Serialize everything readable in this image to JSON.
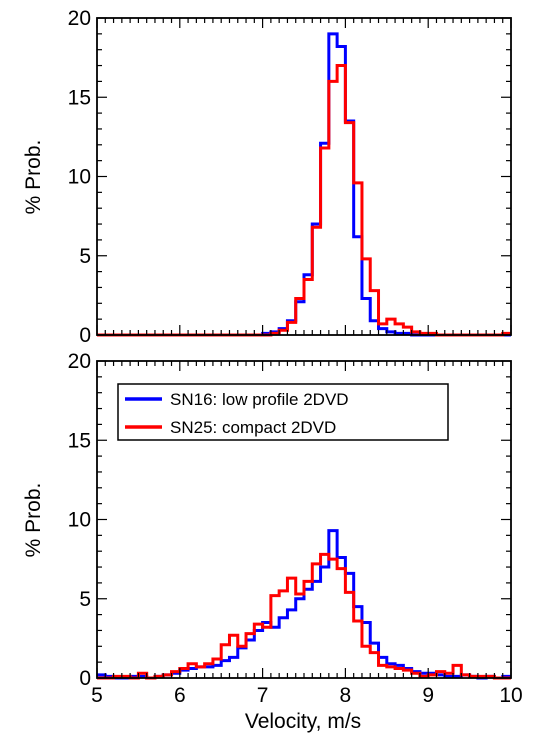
{
  "chart_data": [
    {
      "type": "step",
      "xlim": [
        5,
        10
      ],
      "ylim": [
        0,
        20
      ],
      "xlabel": "",
      "ylabel": "% Prob.",
      "yticks": [
        "0",
        "5",
        "10",
        "15",
        "20"
      ],
      "xticks": [],
      "bin_width": 0.1,
      "x": [
        5.0,
        5.1,
        5.2,
        5.3,
        5.4,
        5.5,
        5.6,
        5.7,
        5.8,
        5.9,
        6.0,
        6.1,
        6.2,
        6.3,
        6.4,
        6.5,
        6.6,
        6.7,
        6.8,
        6.9,
        7.0,
        7.1,
        7.2,
        7.3,
        7.4,
        7.5,
        7.6,
        7.7,
        7.8,
        7.9,
        8.0,
        8.1,
        8.2,
        8.3,
        8.4,
        8.5,
        8.6,
        8.7,
        8.8,
        8.9,
        9.0,
        9.1,
        9.2,
        9.3,
        9.4,
        9.5,
        9.6,
        9.7,
        9.8,
        9.9
      ],
      "series": [
        {
          "name": "SN16: low profile 2DVD",
          "color": "#0000ff",
          "values": [
            0,
            0,
            0,
            0,
            0,
            0,
            0,
            0,
            0,
            0,
            0,
            0,
            0,
            0,
            0,
            0,
            0,
            0,
            0,
            0,
            0.1,
            0.2,
            0.4,
            0.9,
            2.1,
            3.8,
            7.0,
            12.1,
            19.0,
            18.2,
            13.5,
            6.2,
            2.3,
            0.9,
            0.4,
            0.2,
            0.1,
            0.1,
            0,
            0,
            0,
            0,
            0,
            0,
            0,
            0,
            0,
            0,
            0,
            0
          ]
        },
        {
          "name": "SN25: compact 2DVD",
          "color": "#ff0000",
          "values": [
            0,
            0,
            0,
            0,
            0,
            0,
            0,
            0,
            0,
            0,
            0,
            0,
            0,
            0,
            0,
            0,
            0,
            0,
            0,
            0,
            0,
            0.1,
            0.3,
            0.8,
            2.3,
            3.5,
            6.8,
            11.8,
            16.0,
            17.0,
            13.4,
            9.6,
            4.8,
            2.8,
            0.7,
            1.0,
            0.7,
            0.5,
            0.2,
            0.1,
            0.1,
            0,
            0,
            0,
            0,
            0,
            0,
            0,
            0,
            0.1
          ]
        }
      ]
    },
    {
      "type": "step",
      "xlim": [
        5,
        10
      ],
      "ylim": [
        0,
        20
      ],
      "xlabel": "Velocity, m/s",
      "ylabel": "% Prob.",
      "yticks": [
        "0",
        "5",
        "10",
        "15",
        "20"
      ],
      "xticks": [
        "5",
        "6",
        "7",
        "8",
        "9",
        "10"
      ],
      "legend_position": "top-left",
      "bin_width": 0.1,
      "x": [
        5.0,
        5.1,
        5.2,
        5.3,
        5.4,
        5.5,
        5.6,
        5.7,
        5.8,
        5.9,
        6.0,
        6.1,
        6.2,
        6.3,
        6.4,
        6.5,
        6.6,
        6.7,
        6.8,
        6.9,
        7.0,
        7.1,
        7.2,
        7.3,
        7.4,
        7.5,
        7.6,
        7.7,
        7.8,
        7.9,
        8.0,
        8.1,
        8.2,
        8.3,
        8.4,
        8.5,
        8.6,
        8.7,
        8.8,
        8.9,
        9.0,
        9.1,
        9.2,
        9.3,
        9.4,
        9.5,
        9.6,
        9.7,
        9.8,
        9.9
      ],
      "series": [
        {
          "name": "SN16: low profile 2DVD",
          "color": "#0000ff",
          "values": [
            0.2,
            0.1,
            0,
            0,
            0.1,
            0.1,
            0,
            0.1,
            0.2,
            0.3,
            0.5,
            0.6,
            0.7,
            0.7,
            0.8,
            1.1,
            1.3,
            1.9,
            2.4,
            3.0,
            3.5,
            3.2,
            3.8,
            4.3,
            5.0,
            5.6,
            6.1,
            7.0,
            9.3,
            7.6,
            6.6,
            4.5,
            3.5,
            2.2,
            1.3,
            0.9,
            0.8,
            0.6,
            0.4,
            0.3,
            0.3,
            0.2,
            0.1,
            0.1,
            0.2,
            0.1,
            0,
            0.1,
            0,
            0.1
          ]
        },
        {
          "name": "SN25: compact 2DVD",
          "color": "#ff0000",
          "values": [
            0,
            0,
            0.1,
            0.1,
            0,
            0.3,
            0,
            0.1,
            0.2,
            0.4,
            0.6,
            0.9,
            0.7,
            0.9,
            1.2,
            2.1,
            2.7,
            2.0,
            2.8,
            3.4,
            3.2,
            5.2,
            5.5,
            6.3,
            5.3,
            6.1,
            7.2,
            7.8,
            7.5,
            6.9,
            5.4,
            3.6,
            2.0,
            1.6,
            0.8,
            0.7,
            0.6,
            0.5,
            0.3,
            0.1,
            0.2,
            0.4,
            0.3,
            0.8,
            0.2,
            0.1,
            0.1,
            0.1,
            0,
            0
          ]
        }
      ]
    }
  ]
}
